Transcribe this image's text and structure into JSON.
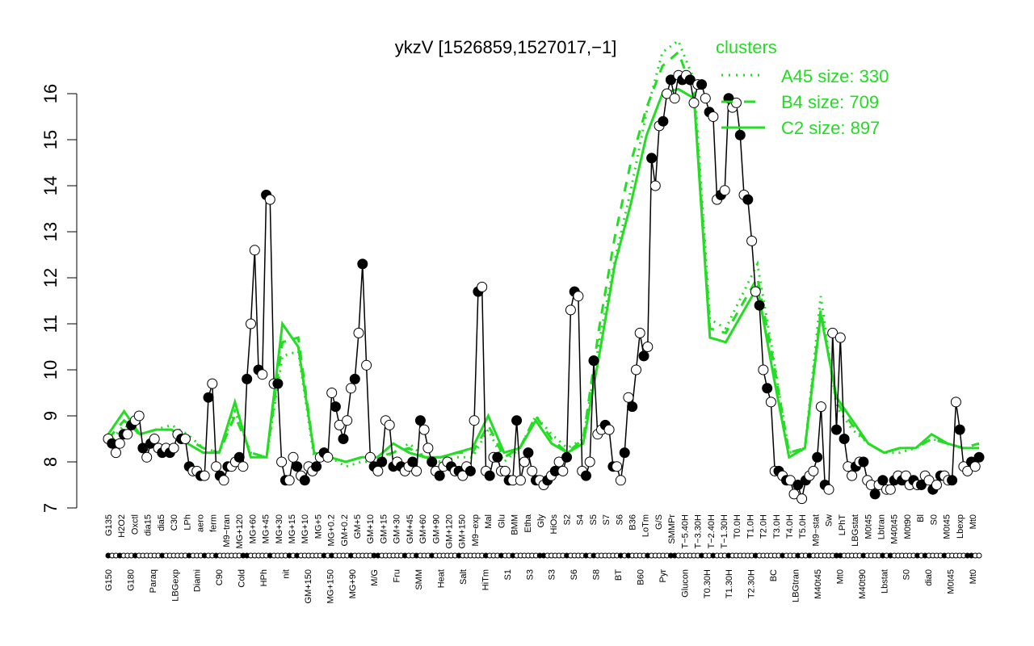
{
  "chart_data": {
    "type": "line",
    "title": "ykzV [1526859,1527017,−1]",
    "xlabel": "",
    "ylabel": "",
    "ylim": [
      7,
      16.3
    ],
    "yticks": [
      7,
      8,
      9,
      10,
      11,
      12,
      13,
      14,
      15,
      16
    ],
    "grid": false,
    "legend": {
      "title": "clusters",
      "placement": "top-right",
      "color": "#22dd22",
      "entries": [
        {
          "label": "A45 size: 330",
          "style": "dotted"
        },
        {
          "label": "B4 size: 709",
          "style": "dashed"
        },
        {
          "label": "C2 size: 897",
          "style": "solid"
        }
      ]
    },
    "colors": {
      "green": "#22dd22",
      "black": "#000000"
    },
    "xtick_labels_upper": [
      "G135",
      "H2O2",
      "Oxctl",
      "dia15",
      "dia5",
      "C30",
      "LPh",
      "aero",
      "ferm",
      "M9−tran",
      "MG+120",
      "MG+60",
      "MG+45",
      "MG+30",
      "MG+15",
      "MG+10",
      "MG+5",
      "MG+0.2",
      "GM+0.2",
      "GM+5",
      "GM+10",
      "GM+15",
      "GM+30",
      "GM+45",
      "GM+60",
      "GM+90",
      "GM+120",
      "GM+150",
      "M9−exp",
      "Mal",
      "Glu",
      "BMM",
      "Etha",
      "Gly",
      "HiOs",
      "S2",
      "S4",
      "S5",
      "S7",
      "S6",
      "B36",
      "LoTm",
      "G/S",
      "SMMPr",
      "T−5.40H",
      "T−3.30H",
      "T−2.40H",
      "T−1.30H",
      "T0.0H",
      "T1.0H",
      "T2.0H",
      "T3.0H",
      "T4.0H",
      "T5.0H",
      "M9−stat",
      "Sw",
      "LPhT",
      "LBGstat",
      "M0t45",
      "Lbtran",
      "M40t45",
      "M0t90",
      "Bl",
      "S0",
      "M0t45",
      "Lbexp",
      "Mt0"
    ],
    "xtick_labels_lower": [
      "G150",
      "G180",
      "Paraq",
      "LBGexp",
      "Diami",
      "C90",
      "Cold",
      "HPh",
      "nit",
      "GM+150",
      "MG+150",
      "MG+90",
      "M/G",
      "Fru",
      "SMM",
      "Heat",
      "Salt",
      "HiTm",
      "S1",
      "S3",
      "S3",
      "S6",
      "S8",
      "BT",
      "B60",
      "Pyr",
      "Glucon",
      "T0.30H",
      "T1.30H",
      "T2.30H",
      "BC",
      "LBGtran",
      "M40t45",
      "Mt0",
      "M40t90",
      "Lbstat",
      "S0",
      "dia0",
      "M0t45",
      "Mt0"
    ],
    "series": [
      {
        "style": "black-line-with-points",
        "values": [
          8.5,
          8.4,
          8.2,
          8.4,
          8.6,
          8.6,
          8.8,
          8.9,
          9.0,
          8.3,
          8.1,
          8.4,
          8.5,
          8.3,
          8.2,
          8.3,
          8.2,
          8.3,
          8.6,
          8.5,
          8.5,
          7.9,
          7.8,
          7.8,
          7.7,
          7.7,
          9.4,
          9.7,
          7.9,
          7.7,
          7.6,
          7.9,
          7.9,
          8.0,
          8.1,
          7.9,
          9.8,
          11.0,
          12.6,
          10.0,
          9.9,
          13.8,
          13.7,
          9.7,
          9.7,
          8.0,
          7.6,
          7.6,
          8.1,
          7.9,
          7.7,
          7.6,
          7.9,
          7.8,
          7.9,
          8.1,
          8.2,
          8.1,
          9.5,
          9.2,
          8.8,
          8.5,
          8.9,
          9.6,
          9.8,
          10.8,
          12.3,
          10.1,
          8.1,
          7.9,
          7.8,
          8.0,
          8.9,
          8.8,
          7.9,
          8.0,
          7.9,
          7.8,
          7.9,
          8.0,
          7.8,
          8.9,
          8.7,
          8.3,
          8.0,
          7.8,
          7.7,
          7.9,
          8.0,
          7.9,
          7.8,
          7.8,
          7.7,
          7.9,
          7.8,
          8.9,
          11.7,
          11.8,
          7.8,
          7.7,
          8.1,
          8.1,
          7.8,
          7.8,
          7.6,
          7.6,
          8.9,
          7.6,
          8.0,
          8.2,
          7.8,
          7.6,
          7.6,
          7.5,
          7.6,
          7.7,
          7.8,
          8.0,
          7.8,
          8.1,
          11.3,
          11.7,
          11.6,
          7.8,
          7.7,
          8.0,
          10.2,
          8.6,
          8.7,
          8.8,
          8.7,
          7.9,
          7.9,
          7.6,
          8.2,
          9.4,
          9.2,
          10.0,
          10.8,
          10.3,
          10.5,
          14.6,
          14.0,
          15.3,
          15.4,
          16.0,
          16.3,
          15.9,
          16.4,
          16.3,
          16.4,
          16.3,
          15.8,
          16.2,
          16.2,
          15.9,
          15.6,
          15.5,
          13.7,
          13.8,
          13.9,
          15.9,
          15.7,
          15.8,
          15.1,
          13.8,
          13.7,
          12.8,
          11.7,
          11.4,
          10.0,
          9.6,
          9.3,
          7.8,
          7.8,
          7.7,
          7.6,
          7.6,
          7.3,
          7.5,
          7.2,
          7.6,
          7.7,
          7.8,
          8.1,
          9.2,
          7.5,
          7.4,
          10.8,
          8.7,
          10.7,
          8.5,
          7.9,
          7.7,
          7.9,
          8.0,
          8.0,
          7.6,
          7.5,
          7.3,
          7.5,
          7.6,
          7.4,
          7.4,
          7.6,
          7.7,
          7.6,
          7.7,
          7.5,
          7.6,
          7.5,
          7.5,
          7.7,
          7.6,
          7.4,
          7.5,
          7.7,
          7.7,
          7.6,
          7.6,
          9.3,
          8.7,
          7.9,
          7.8,
          8.0,
          7.9,
          8.1
        ]
      },
      {
        "name": "A45 size: 330",
        "style": "green-dotted",
        "values": [
          8.4,
          8.8,
          8.6,
          8.7,
          8.8,
          8.6,
          8.3,
          8.2,
          9.1,
          8.2,
          8.1,
          10.3,
          10.4,
          8.1,
          8.1,
          7.9,
          8.0,
          8.0,
          8.2,
          8.4,
          8.1,
          8.0,
          8.1,
          8.1,
          8.7,
          8.0,
          8.3,
          9.0,
          8.6,
          8.3,
          8.5,
          10.6,
          12.4,
          13.9,
          15.6,
          16.9,
          17.2,
          16.3,
          11.1,
          10.9,
          11.6,
          12.3,
          10.3,
          8.2,
          8.3,
          11.6,
          9.2,
          8.7,
          8.4,
          8.2,
          8.2,
          8.3,
          8.5,
          8.4,
          8.3,
          8.3
        ]
      },
      {
        "name": "B4 size: 709",
        "style": "green-dashed",
        "values": [
          8.5,
          8.9,
          8.6,
          8.7,
          8.7,
          8.5,
          8.3,
          8.2,
          9.0,
          8.2,
          8.1,
          10.6,
          10.7,
          8.2,
          8.1,
          8.0,
          8.1,
          8.1,
          8.2,
          8.3,
          8.1,
          8.1,
          8.2,
          8.2,
          8.8,
          8.1,
          8.3,
          9.0,
          8.5,
          8.2,
          8.5,
          10.9,
          12.9,
          14.5,
          15.7,
          16.6,
          16.9,
          16.0,
          10.9,
          10.8,
          11.4,
          12.0,
          10.2,
          8.2,
          8.3,
          11.3,
          9.3,
          8.8,
          8.4,
          8.2,
          8.3,
          8.3,
          8.5,
          8.4,
          8.3,
          8.4
        ]
      },
      {
        "name": "C2 size: 897",
        "style": "green-solid",
        "values": [
          8.6,
          9.1,
          8.6,
          8.7,
          8.7,
          8.4,
          8.2,
          8.2,
          9.3,
          8.1,
          8.1,
          11.0,
          10.5,
          8.2,
          8.1,
          8.0,
          8.1,
          8.1,
          8.4,
          8.2,
          8.1,
          8.1,
          8.2,
          8.3,
          9.0,
          8.2,
          8.3,
          8.9,
          8.4,
          8.2,
          8.4,
          10.3,
          12.3,
          13.6,
          15.1,
          16.0,
          16.1,
          15.9,
          10.7,
          10.6,
          11.2,
          11.8,
          9.9,
          8.1,
          8.3,
          11.2,
          9.4,
          8.9,
          8.4,
          8.2,
          8.3,
          8.3,
          8.6,
          8.4,
          8.3,
          8.3
        ]
      }
    ]
  }
}
